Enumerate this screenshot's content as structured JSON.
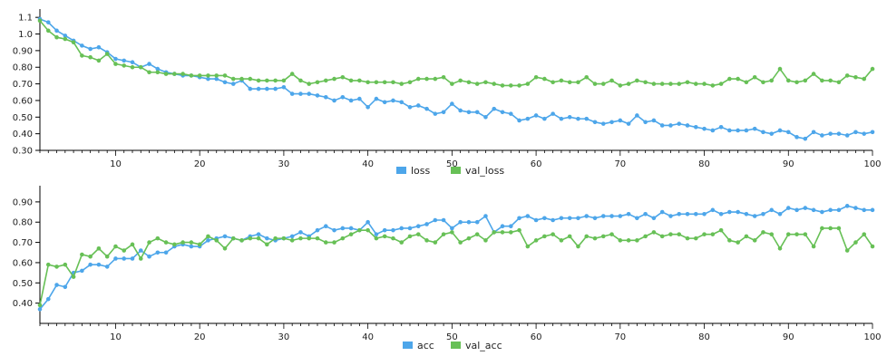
{
  "colors": {
    "series1": "#4da6ea",
    "series2": "#67c056",
    "axis": "#000000"
  },
  "chart_data": [
    {
      "type": "line",
      "x": [
        1,
        2,
        3,
        4,
        5,
        6,
        7,
        8,
        9,
        10,
        11,
        12,
        13,
        14,
        15,
        16,
        17,
        18,
        19,
        20,
        21,
        22,
        23,
        24,
        25,
        26,
        27,
        28,
        29,
        30,
        31,
        32,
        33,
        34,
        35,
        36,
        37,
        38,
        39,
        40,
        41,
        42,
        43,
        44,
        45,
        46,
        47,
        48,
        49,
        50,
        51,
        52,
        53,
        54,
        55,
        56,
        57,
        58,
        59,
        60,
        61,
        62,
        63,
        64,
        65,
        66,
        67,
        68,
        69,
        70,
        71,
        72,
        73,
        74,
        75,
        76,
        77,
        78,
        79,
        80,
        81,
        82,
        83,
        84,
        85,
        86,
        87,
        88,
        89,
        90,
        91,
        92,
        93,
        94,
        95,
        96,
        97,
        98,
        99,
        100
      ],
      "xlim": [
        1,
        100
      ],
      "xticks": [
        10,
        20,
        30,
        40,
        50,
        60,
        70,
        80,
        90,
        100
      ],
      "ylim": [
        0.3,
        1.15
      ],
      "yticks": [
        {
          "value": 0.3,
          "label": "0.30"
        },
        {
          "value": 0.4,
          "label": "0.40"
        },
        {
          "value": 0.5,
          "label": "0.50"
        },
        {
          "value": 0.6,
          "label": "0.60"
        },
        {
          "value": 0.7,
          "label": "0.70"
        },
        {
          "value": 0.8,
          "label": "0.80"
        },
        {
          "value": 0.9,
          "label": "0.90"
        },
        {
          "value": 1.0,
          "label": "1.0"
        },
        {
          "value": 1.1,
          "label": "1.1"
        }
      ],
      "legend_position": "bottom-center",
      "series": [
        {
          "name": "loss",
          "values": [
            1.09,
            1.07,
            1.02,
            0.99,
            0.96,
            0.93,
            0.91,
            0.92,
            0.89,
            0.85,
            0.84,
            0.83,
            0.8,
            0.82,
            0.79,
            0.77,
            0.76,
            0.75,
            0.75,
            0.74,
            0.73,
            0.73,
            0.71,
            0.7,
            0.72,
            0.67,
            0.67,
            0.67,
            0.67,
            0.68,
            0.64,
            0.64,
            0.64,
            0.63,
            0.62,
            0.6,
            0.62,
            0.6,
            0.61,
            0.56,
            0.61,
            0.59,
            0.6,
            0.59,
            0.56,
            0.57,
            0.55,
            0.52,
            0.53,
            0.58,
            0.54,
            0.53,
            0.53,
            0.5,
            0.55,
            0.53,
            0.52,
            0.48,
            0.49,
            0.51,
            0.49,
            0.52,
            0.49,
            0.5,
            0.49,
            0.49,
            0.47,
            0.46,
            0.47,
            0.48,
            0.46,
            0.51,
            0.47,
            0.48,
            0.45,
            0.45,
            0.46,
            0.45,
            0.44,
            0.43,
            0.42,
            0.44,
            0.42,
            0.42,
            0.42,
            0.43,
            0.41,
            0.4,
            0.42,
            0.41,
            0.38,
            0.37,
            0.41,
            0.39,
            0.4,
            0.4,
            0.39,
            0.41,
            0.4,
            0.41
          ]
        },
        {
          "name": "val_loss",
          "values": [
            1.08,
            1.02,
            0.98,
            0.97,
            0.95,
            0.87,
            0.86,
            0.84,
            0.88,
            0.82,
            0.81,
            0.8,
            0.8,
            0.77,
            0.77,
            0.76,
            0.76,
            0.76,
            0.75,
            0.75,
            0.75,
            0.75,
            0.75,
            0.73,
            0.73,
            0.73,
            0.72,
            0.72,
            0.72,
            0.72,
            0.76,
            0.72,
            0.7,
            0.71,
            0.72,
            0.73,
            0.74,
            0.72,
            0.72,
            0.71,
            0.71,
            0.71,
            0.71,
            0.7,
            0.71,
            0.73,
            0.73,
            0.73,
            0.74,
            0.7,
            0.72,
            0.71,
            0.7,
            0.71,
            0.7,
            0.69,
            0.69,
            0.69,
            0.7,
            0.74,
            0.73,
            0.71,
            0.72,
            0.71,
            0.71,
            0.74,
            0.7,
            0.7,
            0.72,
            0.69,
            0.7,
            0.72,
            0.71,
            0.7,
            0.7,
            0.7,
            0.7,
            0.71,
            0.7,
            0.7,
            0.69,
            0.7,
            0.73,
            0.73,
            0.71,
            0.74,
            0.71,
            0.72,
            0.79,
            0.72,
            0.71,
            0.72,
            0.76,
            0.72,
            0.72,
            0.71,
            0.75,
            0.74,
            0.73,
            0.79
          ]
        }
      ]
    },
    {
      "type": "line",
      "x": [
        1,
        2,
        3,
        4,
        5,
        6,
        7,
        8,
        9,
        10,
        11,
        12,
        13,
        14,
        15,
        16,
        17,
        18,
        19,
        20,
        21,
        22,
        23,
        24,
        25,
        26,
        27,
        28,
        29,
        30,
        31,
        32,
        33,
        34,
        35,
        36,
        37,
        38,
        39,
        40,
        41,
        42,
        43,
        44,
        45,
        46,
        47,
        48,
        49,
        50,
        51,
        52,
        53,
        54,
        55,
        56,
        57,
        58,
        59,
        60,
        61,
        62,
        63,
        64,
        65,
        66,
        67,
        68,
        69,
        70,
        71,
        72,
        73,
        74,
        75,
        76,
        77,
        78,
        79,
        80,
        81,
        82,
        83,
        84,
        85,
        86,
        87,
        88,
        89,
        90,
        91,
        92,
        93,
        94,
        95,
        96,
        97,
        98,
        99,
        100
      ],
      "xlim": [
        1,
        100
      ],
      "xticks": [
        10,
        20,
        30,
        40,
        50,
        60,
        70,
        80,
        90,
        100
      ],
      "ylim": [
        0.3,
        0.98
      ],
      "yticks": [
        {
          "value": 0.4,
          "label": "0.40"
        },
        {
          "value": 0.5,
          "label": "0.50"
        },
        {
          "value": 0.6,
          "label": "0.60"
        },
        {
          "value": 0.7,
          "label": "0.70"
        },
        {
          "value": 0.8,
          "label": "0.80"
        },
        {
          "value": 0.9,
          "label": "0.90"
        }
      ],
      "legend_position": "bottom-center",
      "series": [
        {
          "name": "acc",
          "values": [
            0.37,
            0.42,
            0.49,
            0.48,
            0.55,
            0.56,
            0.59,
            0.59,
            0.58,
            0.62,
            0.62,
            0.62,
            0.66,
            0.63,
            0.65,
            0.65,
            0.68,
            0.69,
            0.68,
            0.68,
            0.71,
            0.72,
            0.73,
            0.72,
            0.71,
            0.73,
            0.74,
            0.72,
            0.71,
            0.72,
            0.73,
            0.75,
            0.73,
            0.76,
            0.78,
            0.76,
            0.77,
            0.77,
            0.76,
            0.8,
            0.74,
            0.76,
            0.76,
            0.77,
            0.77,
            0.78,
            0.79,
            0.81,
            0.81,
            0.77,
            0.8,
            0.8,
            0.8,
            0.83,
            0.75,
            0.78,
            0.78,
            0.82,
            0.83,
            0.81,
            0.82,
            0.81,
            0.82,
            0.82,
            0.82,
            0.83,
            0.82,
            0.83,
            0.83,
            0.83,
            0.84,
            0.82,
            0.84,
            0.82,
            0.85,
            0.83,
            0.84,
            0.84,
            0.84,
            0.84,
            0.86,
            0.84,
            0.85,
            0.85,
            0.84,
            0.83,
            0.84,
            0.86,
            0.84,
            0.87,
            0.86,
            0.87,
            0.86,
            0.85,
            0.86,
            0.86,
            0.88,
            0.87,
            0.86,
            0.86
          ]
        },
        {
          "name": "val_acc",
          "values": [
            0.39,
            0.59,
            0.58,
            0.59,
            0.53,
            0.64,
            0.63,
            0.67,
            0.63,
            0.68,
            0.66,
            0.69,
            0.62,
            0.7,
            0.72,
            0.7,
            0.69,
            0.7,
            0.7,
            0.69,
            0.73,
            0.71,
            0.67,
            0.72,
            0.71,
            0.72,
            0.72,
            0.69,
            0.72,
            0.72,
            0.71,
            0.72,
            0.72,
            0.72,
            0.7,
            0.7,
            0.72,
            0.74,
            0.76,
            0.76,
            0.72,
            0.73,
            0.72,
            0.7,
            0.73,
            0.74,
            0.71,
            0.7,
            0.74,
            0.75,
            0.7,
            0.72,
            0.74,
            0.71,
            0.75,
            0.75,
            0.75,
            0.76,
            0.68,
            0.71,
            0.73,
            0.74,
            0.71,
            0.73,
            0.68,
            0.73,
            0.72,
            0.73,
            0.74,
            0.71,
            0.71,
            0.71,
            0.73,
            0.75,
            0.73,
            0.74,
            0.74,
            0.72,
            0.72,
            0.74,
            0.74,
            0.76,
            0.71,
            0.7,
            0.73,
            0.71,
            0.75,
            0.74,
            0.67,
            0.74,
            0.74,
            0.74,
            0.68,
            0.77,
            0.77,
            0.77,
            0.66,
            0.7,
            0.74,
            0.68
          ]
        }
      ]
    }
  ]
}
